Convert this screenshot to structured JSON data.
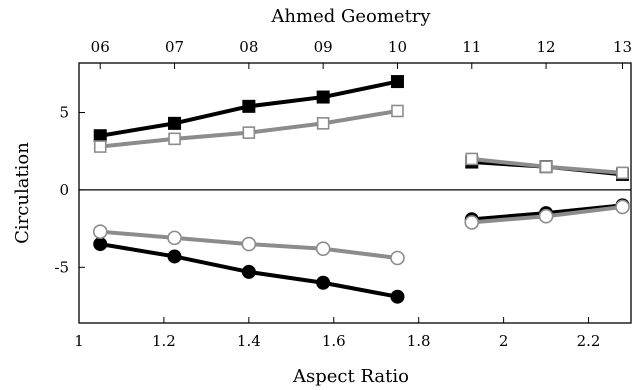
{
  "chart_data": {
    "type": "line",
    "title": "Ahmed Geometry",
    "xlabel": "Aspect Ratio",
    "ylabel": "Circulation",
    "xlim": [
      1.0,
      2.3
    ],
    "ylim": [
      -8.6,
      8.2
    ],
    "x_ticks": [
      1,
      1.2,
      1.4,
      1.6,
      1.8,
      2,
      2.2
    ],
    "x_tick_labels": [
      "1",
      "1.2",
      "1.4",
      "1.6",
      "1.8",
      "2",
      "2.2"
    ],
    "y_ticks": [
      -5,
      0,
      5
    ],
    "y_tick_labels": [
      "-5",
      "0",
      "5"
    ],
    "top_axis": {
      "ticks": [
        1.05,
        1.225,
        1.4,
        1.575,
        1.75,
        1.925,
        2.1,
        2.28
      ],
      "labels": [
        "06",
        "07",
        "08",
        "09",
        "10",
        "11",
        "12",
        "13"
      ]
    },
    "zero_line": true,
    "grid": false,
    "colors": {
      "black": "#000000",
      "gray": "#8c8c8c"
    },
    "series": [
      {
        "color": "#000000",
        "marker": "square-filled",
        "x": [
          1.05,
          1.225,
          1.4,
          1.575,
          1.75
        ],
        "y": [
          3.5,
          4.3,
          5.4,
          6.0,
          7.0
        ]
      },
      {
        "color": "#8c8c8c",
        "marker": "square-open",
        "x": [
          1.05,
          1.225,
          1.4,
          1.575,
          1.75
        ],
        "y": [
          2.8,
          3.3,
          3.7,
          4.3,
          5.1
        ]
      },
      {
        "color": "#000000",
        "marker": "circle-filled",
        "x": [
          1.05,
          1.225,
          1.4,
          1.575,
          1.75
        ],
        "y": [
          -3.5,
          -4.3,
          -5.3,
          -6.0,
          -6.9
        ]
      },
      {
        "color": "#8c8c8c",
        "marker": "circle-open",
        "x": [
          1.05,
          1.225,
          1.4,
          1.575,
          1.75
        ],
        "y": [
          -2.7,
          -3.1,
          -3.5,
          -3.8,
          -4.4
        ]
      },
      {
        "color": "#000000",
        "marker": "square-filled",
        "x": [
          1.925,
          2.1,
          2.28
        ],
        "y": [
          1.8,
          1.5,
          1.0
        ]
      },
      {
        "color": "#8c8c8c",
        "marker": "square-open",
        "x": [
          1.925,
          2.1,
          2.28
        ],
        "y": [
          2.0,
          1.5,
          1.1
        ]
      },
      {
        "color": "#000000",
        "marker": "circle-filled",
        "x": [
          1.925,
          2.1,
          2.28
        ],
        "y": [
          -1.9,
          -1.5,
          -1.0
        ]
      },
      {
        "color": "#8c8c8c",
        "marker": "circle-open",
        "x": [
          1.925,
          2.1,
          2.28
        ],
        "y": [
          -2.1,
          -1.7,
          -1.1
        ]
      }
    ]
  }
}
